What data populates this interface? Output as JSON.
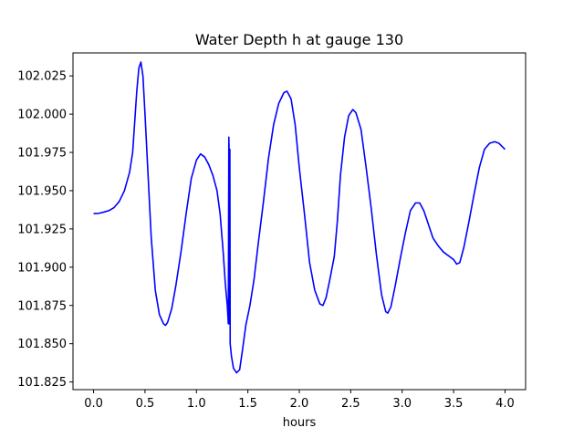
{
  "chart_data": {
    "type": "line",
    "title": "Water Depth h at gauge 130",
    "xlabel": "hours",
    "ylabel": "",
    "xlim": [
      -0.2,
      4.2
    ],
    "ylim": [
      101.82,
      102.04
    ],
    "x_ticks": [
      0.0,
      0.5,
      1.0,
      1.5,
      2.0,
      2.5,
      3.0,
      3.5,
      4.0
    ],
    "x_tick_labels": [
      "0.0",
      "0.5",
      "1.0",
      "1.5",
      "2.0",
      "2.5",
      "3.0",
      "3.5",
      "4.0"
    ],
    "y_ticks": [
      101.825,
      101.85,
      101.875,
      101.9,
      101.925,
      101.95,
      101.975,
      102.0,
      102.025
    ],
    "y_tick_labels": [
      "101.825",
      "101.850",
      "101.875",
      "101.900",
      "101.925",
      "101.950",
      "101.975",
      "102.000",
      "102.025"
    ],
    "grid": false,
    "series": [
      {
        "color": "#0000ff",
        "points": [
          [
            0.0,
            101.935
          ],
          [
            0.05,
            101.9352
          ],
          [
            0.1,
            101.936
          ],
          [
            0.15,
            101.937
          ],
          [
            0.2,
            101.939
          ],
          [
            0.25,
            101.943
          ],
          [
            0.3,
            101.95
          ],
          [
            0.35,
            101.962
          ],
          [
            0.38,
            101.975
          ],
          [
            0.4,
            101.995
          ],
          [
            0.42,
            102.015
          ],
          [
            0.44,
            102.03
          ],
          [
            0.46,
            102.034
          ],
          [
            0.48,
            102.025
          ],
          [
            0.5,
            102.0
          ],
          [
            0.53,
            101.96
          ],
          [
            0.56,
            101.92
          ],
          [
            0.6,
            101.885
          ],
          [
            0.64,
            101.869
          ],
          [
            0.68,
            101.863
          ],
          [
            0.7,
            101.862
          ],
          [
            0.72,
            101.864
          ],
          [
            0.76,
            101.873
          ],
          [
            0.8,
            101.888
          ],
          [
            0.85,
            101.91
          ],
          [
            0.9,
            101.935
          ],
          [
            0.95,
            101.958
          ],
          [
            1.0,
            101.97
          ],
          [
            1.04,
            101.974
          ],
          [
            1.08,
            101.972
          ],
          [
            1.12,
            101.967
          ],
          [
            1.16,
            101.96
          ],
          [
            1.2,
            101.95
          ],
          [
            1.23,
            101.935
          ],
          [
            1.26,
            101.91
          ],
          [
            1.28,
            101.89
          ],
          [
            1.3,
            101.875
          ],
          [
            1.31,
            101.863
          ],
          [
            1.315,
            101.985
          ],
          [
            1.318,
            101.975
          ],
          [
            1.322,
            101.863
          ],
          [
            1.325,
            101.977
          ],
          [
            1.328,
            101.85
          ],
          [
            1.34,
            101.842
          ],
          [
            1.36,
            101.834
          ],
          [
            1.39,
            101.831
          ],
          [
            1.42,
            101.833
          ],
          [
            1.45,
            101.847
          ],
          [
            1.48,
            101.862
          ],
          [
            1.52,
            101.875
          ],
          [
            1.56,
            101.892
          ],
          [
            1.6,
            101.915
          ],
          [
            1.65,
            101.942
          ],
          [
            1.7,
            101.971
          ],
          [
            1.75,
            101.993
          ],
          [
            1.8,
            102.007
          ],
          [
            1.85,
            102.014
          ],
          [
            1.88,
            102.015
          ],
          [
            1.92,
            102.01
          ],
          [
            1.96,
            101.993
          ],
          [
            2.0,
            101.965
          ],
          [
            2.05,
            101.935
          ],
          [
            2.1,
            101.903
          ],
          [
            2.15,
            101.885
          ],
          [
            2.2,
            101.876
          ],
          [
            2.23,
            101.875
          ],
          [
            2.26,
            101.88
          ],
          [
            2.3,
            101.893
          ],
          [
            2.34,
            101.907
          ],
          [
            2.37,
            101.93
          ],
          [
            2.4,
            101.96
          ],
          [
            2.44,
            101.985
          ],
          [
            2.48,
            101.999
          ],
          [
            2.52,
            102.003
          ],
          [
            2.55,
            102.001
          ],
          [
            2.6,
            101.99
          ],
          [
            2.65,
            101.965
          ],
          [
            2.7,
            101.938
          ],
          [
            2.75,
            101.908
          ],
          [
            2.8,
            101.882
          ],
          [
            2.84,
            101.871
          ],
          [
            2.86,
            101.87
          ],
          [
            2.89,
            101.874
          ],
          [
            2.93,
            101.887
          ],
          [
            2.98,
            101.905
          ],
          [
            3.03,
            101.922
          ],
          [
            3.08,
            101.937
          ],
          [
            3.13,
            101.942
          ],
          [
            3.17,
            101.942
          ],
          [
            3.21,
            101.937
          ],
          [
            3.25,
            101.929
          ],
          [
            3.3,
            101.919
          ],
          [
            3.35,
            101.914
          ],
          [
            3.4,
            101.91
          ],
          [
            3.46,
            101.907
          ],
          [
            3.5,
            101.905
          ],
          [
            3.53,
            101.902
          ],
          [
            3.56,
            101.903
          ],
          [
            3.6,
            101.913
          ],
          [
            3.65,
            101.93
          ],
          [
            3.7,
            101.948
          ],
          [
            3.75,
            101.965
          ],
          [
            3.8,
            101.977
          ],
          [
            3.85,
            101.981
          ],
          [
            3.9,
            101.982
          ],
          [
            3.94,
            101.981
          ],
          [
            3.97,
            101.979
          ],
          [
            4.0,
            101.977
          ]
        ]
      }
    ]
  }
}
